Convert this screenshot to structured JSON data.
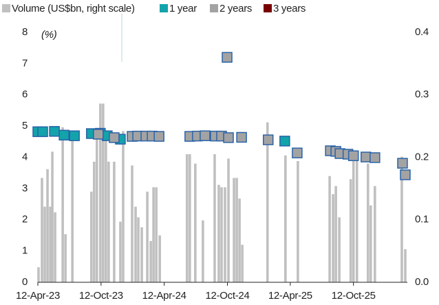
{
  "chart_data": {
    "type": "bar",
    "annotation": "(%)",
    "xlim": [
      "2023-04-12",
      "2026-03-17"
    ],
    "xticks": [
      {
        "value": "2023-04-12",
        "label": "12-Apr-23"
      },
      {
        "value": "2023-10-12",
        "label": "12-Oct-23"
      },
      {
        "value": "2024-04-12",
        "label": "12-Apr-24"
      },
      {
        "value": "2024-10-12",
        "label": "12-Oct-24"
      },
      {
        "value": "2025-04-12",
        "label": "12-Apr-25"
      },
      {
        "value": "2025-10-12",
        "label": "12-Oct-25"
      }
    ],
    "ylim": [
      0,
      8
    ],
    "yticks": [
      0,
      1,
      2,
      3,
      4,
      5,
      6,
      7,
      8
    ],
    "y2lim": [
      0,
      0.4
    ],
    "y2ticks": [
      {
        "value": 0,
        "label": "0.0"
      },
      0.1,
      0.2,
      0.3,
      0.4
    ],
    "series": [
      {
        "name": "Volume (US$bn, right scale)",
        "type": "bar",
        "axis": "y2",
        "color": "#c0c0c0",
        "x": [
          "2023-04-14",
          "2023-04-24",
          "2023-05-02",
          "2023-05-10",
          "2023-05-18",
          "2023-05-24",
          "2023-06-01",
          "2023-06-23",
          "2023-07-01",
          "2023-07-21",
          "2023-09-14",
          "2023-09-22",
          "2023-09-30",
          "2023-10-10",
          "2023-10-18",
          "2023-10-26",
          "2023-11-03",
          "2023-11-19",
          "2023-12-07",
          "2023-12-15",
          "2024-01-10",
          "2024-01-20",
          "2024-01-28",
          "2024-02-07",
          "2024-02-23",
          "2024-03-04",
          "2024-03-12",
          "2024-03-20",
          "2024-03-30",
          "2024-06-17",
          "2024-06-25",
          "2024-07-11",
          "2024-08-02",
          "2024-09-05",
          "2024-09-17",
          "2024-09-25",
          "2024-10-05",
          "2024-10-15",
          "2024-10-31",
          "2024-11-08",
          "2024-11-16",
          "2024-11-24",
          "2025-02-05",
          "2025-03-29",
          "2025-05-04",
          "2025-08-04",
          "2025-08-14",
          "2025-08-22",
          "2025-09-01",
          "2025-10-04",
          "2025-10-12",
          "2025-10-22",
          "2025-11-23",
          "2025-12-01",
          "2025-12-13",
          "2026-03-01",
          "2026-03-11"
        ],
        "values": [
          0.024,
          0.167,
          0.121,
          0.181,
          0.121,
          0.209,
          0.112,
          0.248,
          0.077,
          0.242,
          0.145,
          0.193,
          0.242,
          0.286,
          0.286,
          0.242,
          0.193,
          0.193,
          0.097,
          0.242,
          0.187,
          0.121,
          0.104,
          0.088,
          0.145,
          0.066,
          0.152,
          0.152,
          0.075,
          0.205,
          0.205,
          0.19,
          0.099,
          0.205,
          0.156,
          0.152,
          0.152,
          0.198,
          0.167,
          0.167,
          0.134,
          0.06,
          0.256,
          0.203,
          0.194,
          0.17,
          0.141,
          0.154,
          0.104,
          0.165,
          0.209,
          0.198,
          0.19,
          0.123,
          0.154,
          0.201,
          0.053
        ]
      },
      {
        "name": "1 year",
        "type": "scatter",
        "color": "#13a3ab",
        "x": [
          "2023-04-12",
          "2023-04-26",
          "2023-05-30",
          "2023-06-27",
          "2023-07-27",
          "2023-09-14",
          "2023-10-10",
          "2023-10-30",
          "2023-12-07",
          "2025-03-27"
        ],
        "values": [
          4.82,
          4.82,
          4.83,
          4.71,
          4.69,
          4.76,
          4.77,
          4.69,
          4.58,
          4.52
        ]
      },
      {
        "name": "2 years",
        "type": "scatter",
        "color": "#a3a3a3",
        "x": [
          "2023-10-04",
          "2023-11-19",
          "2024-01-10",
          "2024-01-26",
          "2024-02-19",
          "2024-03-08",
          "2024-03-28",
          "2024-06-25",
          "2024-07-17",
          "2024-08-08",
          "2024-09-07",
          "2024-09-25",
          "2024-10-11",
          "2024-10-15",
          "2024-11-22",
          "2025-02-07",
          "2025-05-02",
          "2025-08-06",
          "2025-08-22",
          "2025-09-03",
          "2025-09-26",
          "2025-10-12",
          "2025-11-17",
          "2025-12-13",
          "2026-03-03",
          "2026-03-11"
        ],
        "values": [
          4.74,
          4.63,
          4.67,
          4.68,
          4.68,
          4.68,
          4.67,
          4.67,
          4.68,
          4.69,
          4.68,
          4.68,
          7.2,
          4.63,
          4.64,
          4.56,
          4.14,
          4.21,
          4.19,
          4.12,
          4.1,
          4.05,
          4.01,
          3.99,
          3.81,
          3.44
        ]
      },
      {
        "name": "3 years",
        "type": "scatter",
        "color": "#7a0000",
        "x": [],
        "values": []
      }
    ]
  }
}
